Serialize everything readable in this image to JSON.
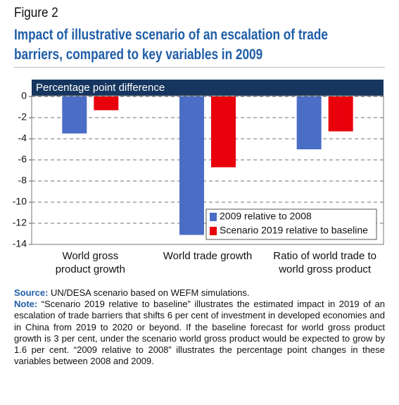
{
  "figure_label": "Figure 2",
  "title": "Impact of illustrative scenario of an escalation of trade barriers, compared to key variables in 2009",
  "chart_data": {
    "type": "bar",
    "ylabel": "Percentage point difference",
    "categories": [
      "World gross product growth",
      "World trade growth",
      "Ratio of world trade to world gross product"
    ],
    "series": [
      {
        "name": "2009 relative to 2008",
        "color": "#4a6ec6",
        "values": [
          -3.5,
          -13.1,
          -5.0
        ]
      },
      {
        "name": "Scenario 2019 relative to baseline",
        "color": "#e8000b",
        "values": [
          -1.3,
          -6.7,
          -3.3
        ]
      }
    ],
    "ylim": [
      -14,
      0
    ],
    "yticks": [
      0,
      -2,
      -4,
      -6,
      -8,
      -10,
      -12,
      -14
    ],
    "grid": true,
    "legend": "lower right"
  },
  "source": {
    "label": "Source:",
    "text": "UN/DESA scenario based on WEFM simulations."
  },
  "note": {
    "label": "Note:",
    "text": "“Scenario 2019 relative to baseline” illustrates the estimated impact in 2019 of an escalation of trade barriers that shifts 6 per cent of investment in developed economies and in China from 2019 to 2020 or beyond. If the baseline forecast for world gross product growth is 3 per cent, under the scenario world gross product would be expected to grow by 1.6 per cent. “2009 relative to 2008” illustrates the percentage point changes in these variables between 2008 and 2009."
  }
}
